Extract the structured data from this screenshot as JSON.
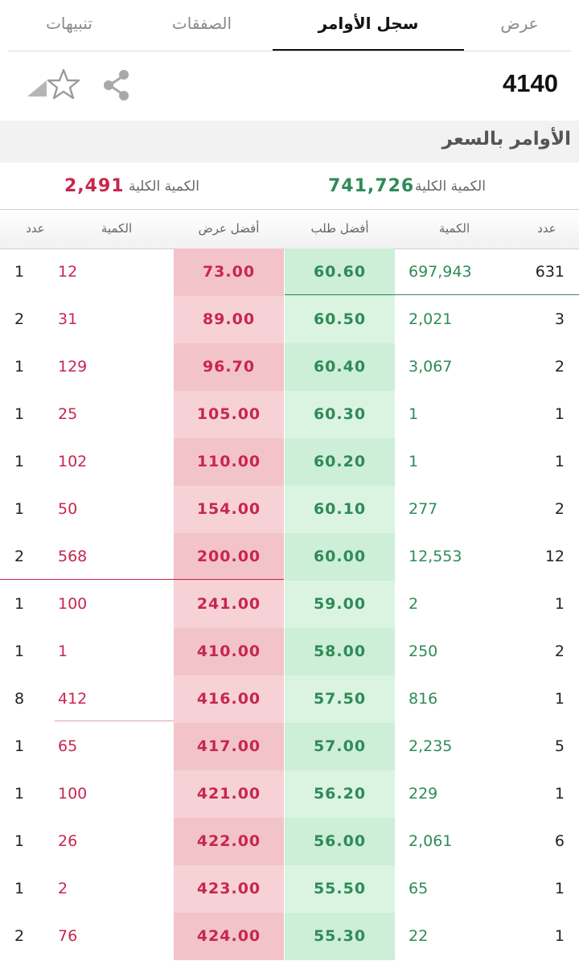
{
  "tabs": [
    {
      "label": "عرض",
      "active": false
    },
    {
      "label": "سجل الأوامر",
      "active": true
    },
    {
      "label": "الصفقات",
      "active": false
    },
    {
      "label": "تنبيهات",
      "active": false
    }
  ],
  "symbol": {
    "code": "4140"
  },
  "icons": {
    "share": "share-icon",
    "favorite": "star-outline-icon",
    "expand": "corner-triangle-icon"
  },
  "section": {
    "title": "الأوامر بالسعر"
  },
  "totals": {
    "bid_label": "الكمية الكلية",
    "bid_value": "741,726",
    "ask_label": "الكمية الكلية",
    "ask_value": "2,491"
  },
  "headers": {
    "ask_count": "عدد",
    "ask_qty": "الكمية",
    "ask_price": "أفضل عرض",
    "bid_price": "أفضل طلب",
    "bid_qty": "الكمية",
    "bid_count": "عدد"
  },
  "colors": {
    "bid": "#2e8b57",
    "ask": "#c8264e",
    "bid_bg": "#d4f0dd",
    "ask_bg": "#f5cdd2"
  },
  "rows": [
    {
      "ask_count": "1",
      "ask_qty": "12",
      "ask_price": "73.00",
      "bid_price": "60.60",
      "bid_qty": "697,943",
      "bid_count": "631"
    },
    {
      "ask_count": "2",
      "ask_qty": "31",
      "ask_price": "89.00",
      "bid_price": "60.50",
      "bid_qty": "2,021",
      "bid_count": "3"
    },
    {
      "ask_count": "1",
      "ask_qty": "129",
      "ask_price": "96.70",
      "bid_price": "60.40",
      "bid_qty": "3,067",
      "bid_count": "2"
    },
    {
      "ask_count": "1",
      "ask_qty": "25",
      "ask_price": "105.00",
      "bid_price": "60.30",
      "bid_qty": "1",
      "bid_count": "1"
    },
    {
      "ask_count": "1",
      "ask_qty": "102",
      "ask_price": "110.00",
      "bid_price": "60.20",
      "bid_qty": "1",
      "bid_count": "1"
    },
    {
      "ask_count": "1",
      "ask_qty": "50",
      "ask_price": "154.00",
      "bid_price": "60.10",
      "bid_qty": "277",
      "bid_count": "2"
    },
    {
      "ask_count": "2",
      "ask_qty": "568",
      "ask_price": "200.00",
      "bid_price": "60.00",
      "bid_qty": "12,553",
      "bid_count": "12"
    },
    {
      "ask_count": "1",
      "ask_qty": "100",
      "ask_price": "241.00",
      "bid_price": "59.00",
      "bid_qty": "2",
      "bid_count": "1"
    },
    {
      "ask_count": "1",
      "ask_qty": "1",
      "ask_price": "410.00",
      "bid_price": "58.00",
      "bid_qty": "250",
      "bid_count": "2"
    },
    {
      "ask_count": "8",
      "ask_qty": "412",
      "ask_price": "416.00",
      "bid_price": "57.50",
      "bid_qty": "816",
      "bid_count": "1"
    },
    {
      "ask_count": "1",
      "ask_qty": "65",
      "ask_price": "417.00",
      "bid_price": "57.00",
      "bid_qty": "2,235",
      "bid_count": "5"
    },
    {
      "ask_count": "1",
      "ask_qty": "100",
      "ask_price": "421.00",
      "bid_price": "56.20",
      "bid_qty": "229",
      "bid_count": "1"
    },
    {
      "ask_count": "1",
      "ask_qty": "26",
      "ask_price": "422.00",
      "bid_price": "56.00",
      "bid_qty": "2,061",
      "bid_count": "6"
    },
    {
      "ask_count": "1",
      "ask_qty": "2",
      "ask_price": "423.00",
      "bid_price": "55.50",
      "bid_qty": "65",
      "bid_count": "1"
    },
    {
      "ask_count": "2",
      "ask_qty": "76",
      "ask_price": "424.00",
      "bid_price": "55.30",
      "bid_qty": "22",
      "bid_count": "1"
    }
  ]
}
